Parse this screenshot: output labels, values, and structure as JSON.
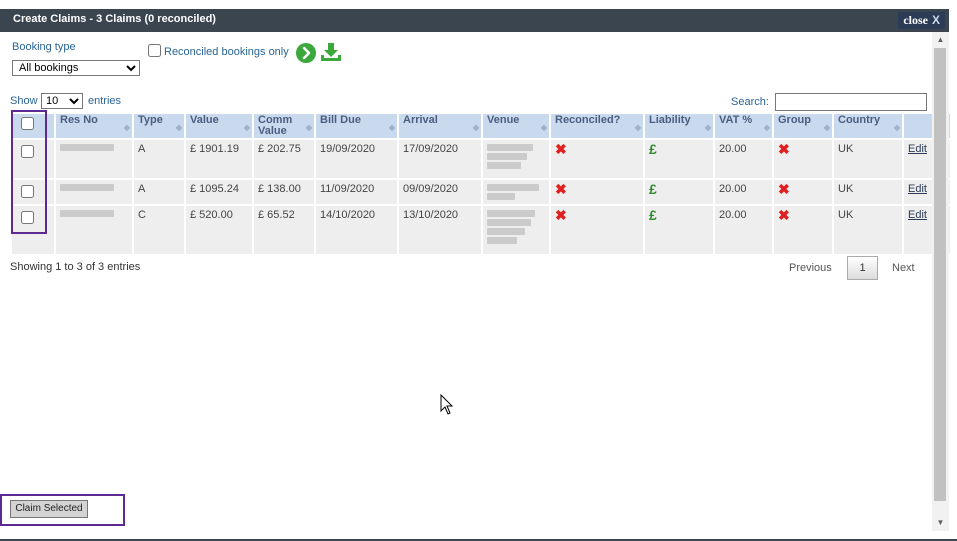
{
  "dialog": {
    "title": "Create Claims - 3 Claims (0 reconciled)",
    "close_label": "close",
    "close_x": "X"
  },
  "filters": {
    "booking_type_label": "Booking type",
    "booking_type_value": "All bookings",
    "reconciled_only_label": "Reconciled bookings only",
    "reconciled_only_checked": false,
    "go_icon": "arrow-right-circle",
    "download_icon": "download"
  },
  "table_controls": {
    "show_label": "Show",
    "entries_value": "10",
    "entries_label": "entries",
    "search_label": "Search:",
    "search_value": ""
  },
  "table": {
    "columns": [
      "",
      "Res No",
      "Type",
      "Value",
      "Comm Value",
      "Bill Due",
      "Arrival",
      "Venue",
      "Reconciled?",
      "Liability",
      "VAT %",
      "Group",
      "Country",
      ""
    ],
    "rows": [
      {
        "res_no": "",
        "type": "A",
        "value": "£ 1901.19",
        "comm_value": "£ 202.75",
        "bill_due": "19/09/2020",
        "arrival": "17/09/2020",
        "venue": "",
        "reconciled": "✖",
        "liability": "£",
        "vat": "20.00",
        "group": "✖",
        "country": "UK",
        "edit": "Edit"
      },
      {
        "res_no": "",
        "type": "A",
        "value": "£ 1095.24",
        "comm_value": "£ 138.00",
        "bill_due": "11/09/2020",
        "arrival": "09/09/2020",
        "venue": "",
        "reconciled": "✖",
        "liability": "£",
        "vat": "20.00",
        "group": "✖",
        "country": "UK",
        "edit": "Edit"
      },
      {
        "res_no": "",
        "type": "C",
        "value": "£ 520.00",
        "comm_value": "£ 65.52",
        "bill_due": "14/10/2020",
        "arrival": "13/10/2020",
        "venue": "",
        "reconciled": "✖",
        "liability": "£",
        "vat": "20.00",
        "group": "✖",
        "country": "UK",
        "edit": "Edit"
      }
    ]
  },
  "pagination": {
    "info": "Showing 1 to 3 of 3 entries",
    "previous": "Previous",
    "page": "1",
    "next": "Next"
  },
  "actions": {
    "claim_selected": "Claim Selected"
  },
  "colors": {
    "titlebar": "#3a4550",
    "header_cell": "#c9d9ee",
    "row_cell": "#eeeeee",
    "highlight": "#5c2a91",
    "red_x": "#e02020",
    "green_pound": "#2e8b2e"
  }
}
